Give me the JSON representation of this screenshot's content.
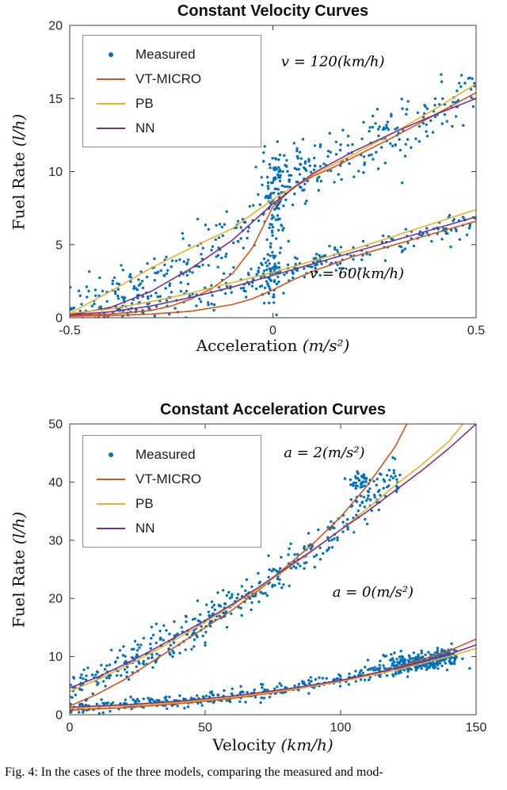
{
  "caption": "Fig. 4: In the cases of the three models, comparing the measured and mod-",
  "chart_data": [
    {
      "type": "scatter",
      "title": "Constant Velocity Curves",
      "xlabel": "Acceleration (m/s²)",
      "xlabel_text": "Acceleration ",
      "xlabel_math": "(m/s²)",
      "ylabel": "Fuel Rate (l/h)",
      "ylabel_text": "Fuel Rate ",
      "ylabel_math": "(l/h)",
      "xlim": [
        -0.5,
        0.5
      ],
      "ylim": [
        0,
        20
      ],
      "xticks": [
        -0.5,
        0,
        0.5
      ],
      "yticks": [
        0,
        5,
        10,
        15,
        20
      ],
      "grid": false,
      "legend_position": "top-left",
      "seed": 13,
      "legend": [
        {
          "label": "Measured",
          "type": "dot",
          "color": "#0072BD"
        },
        {
          "label": "VT-MICRO",
          "type": "line",
          "color": "#D95319"
        },
        {
          "label": "PB",
          "type": "line",
          "color": "#EDB120"
        },
        {
          "label": "NN",
          "type": "line",
          "color": "#7E2F8E"
        }
      ],
      "annotations": [
        {
          "text": "v = 120(km/h)",
          "x": 0.02,
          "y": 17.2
        },
        {
          "text": "v = 60(km/h)",
          "x": 0.09,
          "y": 2.7
        }
      ],
      "scatter_clusters": [
        {
          "name": "v=120 km/h measured",
          "x_range": [
            -0.5,
            0.5
          ],
          "noise_sd": 1.0,
          "n": 380,
          "trend": [
            [
              -0.5,
              0.3
            ],
            [
              -0.45,
              0.6
            ],
            [
              -0.4,
              1.1
            ],
            [
              -0.35,
              1.9
            ],
            [
              -0.3,
              2.7
            ],
            [
              -0.25,
              3.4
            ],
            [
              -0.2,
              4.2
            ],
            [
              -0.15,
              4.9
            ],
            [
              -0.1,
              5.4
            ],
            [
              -0.05,
              6.2
            ],
            [
              0,
              9.2
            ],
            [
              0.05,
              9.9
            ],
            [
              0.1,
              10.3
            ],
            [
              0.15,
              10.8
            ],
            [
              0.2,
              11.3
            ],
            [
              0.3,
              12.6
            ],
            [
              0.4,
              14.1
            ],
            [
              0.5,
              15.6
            ]
          ],
          "blobs": [
            {
              "x": 0.005,
              "y": 8.0,
              "sdx": 0.012,
              "sdy": 1.7,
              "n": 80
            },
            {
              "x": 0.05,
              "y": 9.6,
              "sdx": 0.03,
              "sdy": 0.8,
              "n": 40
            }
          ]
        },
        {
          "name": "v=60 km/h measured",
          "x_range": [
            -0.5,
            0.5
          ],
          "noise_sd": 0.5,
          "n": 280,
          "trend": [
            [
              -0.5,
              0.2
            ],
            [
              -0.4,
              0.35
            ],
            [
              -0.3,
              0.7
            ],
            [
              -0.2,
              1.3
            ],
            [
              -0.1,
              2.0
            ],
            [
              0,
              2.8
            ],
            [
              0.1,
              3.6
            ],
            [
              0.2,
              4.4
            ],
            [
              0.3,
              5.2
            ],
            [
              0.4,
              6.0
            ],
            [
              0.5,
              6.8
            ]
          ],
          "blobs": [
            {
              "x": 0.0,
              "y": 2.8,
              "sdx": 0.012,
              "sdy": 1.1,
              "n": 50
            }
          ]
        }
      ],
      "line_series": [
        {
          "name": "VT-MICRO",
          "cluster": "v=120",
          "color": "#D95319",
          "points": [
            [
              -0.5,
              0.15
            ],
            [
              -0.4,
              0.25
            ],
            [
              -0.3,
              0.5
            ],
            [
              -0.25,
              0.8
            ],
            [
              -0.2,
              1.3
            ],
            [
              -0.15,
              2.0
            ],
            [
              -0.1,
              3.0
            ],
            [
              -0.05,
              4.8
            ],
            [
              0,
              7.6
            ],
            [
              0.05,
              8.9
            ],
            [
              0.1,
              9.7
            ],
            [
              0.15,
              10.3
            ],
            [
              0.2,
              11.0
            ],
            [
              0.3,
              12.4
            ],
            [
              0.4,
              13.9
            ],
            [
              0.5,
              15.4
            ]
          ]
        },
        {
          "name": "PB",
          "cluster": "v=120",
          "color": "#EDB120",
          "points": [
            [
              -0.5,
              0.3
            ],
            [
              -0.4,
              1.8
            ],
            [
              -0.3,
              3.4
            ],
            [
              -0.2,
              4.8
            ],
            [
              -0.1,
              6.1
            ],
            [
              0,
              8.1
            ],
            [
              0.1,
              9.8
            ],
            [
              0.2,
              11.2
            ],
            [
              0.3,
              12.7
            ],
            [
              0.4,
              14.3
            ],
            [
              0.5,
              16.0
            ]
          ]
        },
        {
          "name": "NN",
          "cluster": "v=120",
          "color": "#7E2F8E",
          "points": [
            [
              -0.5,
              0.2
            ],
            [
              -0.4,
              0.7
            ],
            [
              -0.3,
              1.8
            ],
            [
              -0.2,
              3.4
            ],
            [
              -0.1,
              5.3
            ],
            [
              0,
              7.8
            ],
            [
              0.1,
              9.9
            ],
            [
              0.2,
              11.4
            ],
            [
              0.3,
              12.7
            ],
            [
              0.4,
              13.9
            ],
            [
              0.5,
              15.0
            ]
          ]
        },
        {
          "name": "VT-MICRO",
          "cluster": "v=60",
          "color": "#D95319",
          "points": [
            [
              -0.5,
              0.1
            ],
            [
              -0.4,
              0.15
            ],
            [
              -0.3,
              0.25
            ],
            [
              -0.2,
              0.45
            ],
            [
              -0.1,
              0.9
            ],
            [
              -0.05,
              1.3
            ],
            [
              0,
              1.9
            ],
            [
              0.05,
              2.6
            ],
            [
              0.1,
              3.2
            ],
            [
              0.2,
              4.2
            ],
            [
              0.3,
              5.0
            ],
            [
              0.4,
              5.8
            ],
            [
              0.5,
              6.6
            ]
          ]
        },
        {
          "name": "PB",
          "cluster": "v=60",
          "color": "#EDB120",
          "points": [
            [
              -0.5,
              0.3
            ],
            [
              -0.4,
              0.6
            ],
            [
              -0.3,
              1.1
            ],
            [
              -0.2,
              1.7
            ],
            [
              -0.1,
              2.4
            ],
            [
              0,
              3.1
            ],
            [
              0.1,
              3.9
            ],
            [
              0.2,
              4.7
            ],
            [
              0.3,
              5.6
            ],
            [
              0.4,
              6.5
            ],
            [
              0.5,
              7.4
            ]
          ]
        },
        {
          "name": "NN",
          "cluster": "v=60",
          "color": "#7E2F8E",
          "points": [
            [
              -0.5,
              0.2
            ],
            [
              -0.4,
              0.4
            ],
            [
              -0.3,
              0.8
            ],
            [
              -0.2,
              1.4
            ],
            [
              -0.1,
              2.1
            ],
            [
              0,
              2.9
            ],
            [
              0.1,
              3.7
            ],
            [
              0.2,
              4.5
            ],
            [
              0.3,
              5.3
            ],
            [
              0.4,
              6.1
            ],
            [
              0.5,
              6.9
            ]
          ]
        }
      ]
    },
    {
      "type": "scatter",
      "title": "Constant Acceleration Curves",
      "xlabel": "Velocity (km/h)",
      "xlabel_text": "Velocity ",
      "xlabel_math": "(km/h)",
      "ylabel": "Fuel Rate (l/h)",
      "ylabel_text": "Fuel Rate ",
      "ylabel_math": "(l/h)",
      "xlim": [
        0,
        150
      ],
      "ylim": [
        0,
        50
      ],
      "xticks": [
        0,
        50,
        100,
        150
      ],
      "yticks": [
        0,
        10,
        20,
        30,
        40,
        50
      ],
      "grid": false,
      "legend_position": "top-left",
      "seed": 29,
      "legend": [
        {
          "label": "Measured",
          "type": "dot",
          "color": "#0072BD"
        },
        {
          "label": "VT-MICRO",
          "type": "line",
          "color": "#D95319"
        },
        {
          "label": "PB",
          "type": "line",
          "color": "#EDB120"
        },
        {
          "label": "NN",
          "type": "line",
          "color": "#7E2F8E"
        }
      ],
      "annotations": [
        {
          "text": "a = 2(m/s²)",
          "x": 79,
          "y": 44.3
        },
        {
          "text": "a = 0(m/s²)",
          "x": 97,
          "y": 20.3
        }
      ],
      "scatter_clusters": [
        {
          "name": "a=2 m/s2 measured",
          "x_range": [
            0,
            122
          ],
          "noise_sd": 1.6,
          "n": 430,
          "trend": [
            [
              0,
              4.5
            ],
            [
              10,
              6.5
            ],
            [
              20,
              8.7
            ],
            [
              30,
              11
            ],
            [
              40,
              13.4
            ],
            [
              50,
              16
            ],
            [
              60,
              19
            ],
            [
              70,
              22
            ],
            [
              80,
              25.2
            ],
            [
              90,
              28.6
            ],
            [
              100,
              32.5
            ],
            [
              110,
              36.5
            ],
            [
              122,
              40.5
            ]
          ],
          "blobs": [
            {
              "x": 108,
              "y": 40.3,
              "sdx": 3,
              "sdy": 0.7,
              "n": 45
            }
          ]
        },
        {
          "name": "a=0 m/s2 measured",
          "x_range": [
            0,
            143
          ],
          "noise_sd": 0.55,
          "n": 400,
          "trend": [
            [
              0,
              1.2
            ],
            [
              20,
              1.7
            ],
            [
              40,
              2.3
            ],
            [
              60,
              3.2
            ],
            [
              80,
              4.4
            ],
            [
              100,
              6.0
            ],
            [
              110,
              6.9
            ],
            [
              120,
              7.9
            ],
            [
              130,
              8.9
            ],
            [
              140,
              9.6
            ]
          ],
          "blobs": [
            {
              "x": 126,
              "y": 9.0,
              "sdx": 7,
              "sdy": 0.9,
              "n": 160
            },
            {
              "x": 137,
              "y": 10.3,
              "sdx": 3,
              "sdy": 0.8,
              "n": 60
            }
          ]
        }
      ],
      "line_series": [
        {
          "name": "VT-MICRO",
          "cluster": "a=2",
          "color": "#D95319",
          "points": [
            [
              0,
              1.5
            ],
            [
              10,
              3.5
            ],
            [
              20,
              6
            ],
            [
              30,
              9
            ],
            [
              40,
              12
            ],
            [
              50,
              15
            ],
            [
              60,
              18
            ],
            [
              70,
              21.5
            ],
            [
              80,
              25.5
            ],
            [
              90,
              29.5
            ],
            [
              100,
              34
            ],
            [
              110,
              39.5
            ],
            [
              120,
              46
            ],
            [
              125,
              50.5
            ]
          ]
        },
        {
          "name": "PB",
          "cluster": "a=2",
          "color": "#EDB120",
          "points": [
            [
              0,
              4
            ],
            [
              10,
              6
            ],
            [
              20,
              8.2
            ],
            [
              30,
              10.6
            ],
            [
              40,
              13.2
            ],
            [
              50,
              15.9
            ],
            [
              60,
              18.8
            ],
            [
              70,
              21.8
            ],
            [
              80,
              25
            ],
            [
              90,
              28.3
            ],
            [
              100,
              31.8
            ],
            [
              110,
              35.5
            ],
            [
              120,
              39.4
            ],
            [
              130,
              43
            ],
            [
              140,
              47
            ],
            [
              146,
              50.5
            ]
          ]
        },
        {
          "name": "NN",
          "cluster": "a=2",
          "color": "#7E2F8E",
          "points": [
            [
              0,
              4.6
            ],
            [
              10,
              6.4
            ],
            [
              20,
              8.6
            ],
            [
              30,
              11
            ],
            [
              40,
              13.6
            ],
            [
              50,
              16.2
            ],
            [
              60,
              19
            ],
            [
              70,
              22
            ],
            [
              80,
              25.2
            ],
            [
              90,
              28.4
            ],
            [
              100,
              31.8
            ],
            [
              110,
              35
            ],
            [
              120,
              38.5
            ],
            [
              130,
              42
            ],
            [
              140,
              45.8
            ],
            [
              150,
              50
            ]
          ]
        },
        {
          "name": "VT-MICRO",
          "cluster": "a=0",
          "color": "#D95319",
          "points": [
            [
              0,
              0.8
            ],
            [
              20,
              1.2
            ],
            [
              40,
              1.9
            ],
            [
              60,
              2.8
            ],
            [
              80,
              4.1
            ],
            [
              100,
              5.8
            ],
            [
              120,
              8.0
            ],
            [
              140,
              11.0
            ],
            [
              150,
              13.0
            ]
          ]
        },
        {
          "name": "PB",
          "cluster": "a=0",
          "color": "#EDB120",
          "points": [
            [
              0,
              1.1
            ],
            [
              20,
              1.5
            ],
            [
              40,
              2.1
            ],
            [
              60,
              3.0
            ],
            [
              80,
              4.2
            ],
            [
              100,
              5.7
            ],
            [
              120,
              7.6
            ],
            [
              140,
              10.0
            ],
            [
              150,
              11.4
            ]
          ]
        },
        {
          "name": "NN",
          "cluster": "a=0",
          "color": "#7E2F8E",
          "points": [
            [
              0,
              1.3
            ],
            [
              20,
              1.7
            ],
            [
              40,
              2.3
            ],
            [
              60,
              3.2
            ],
            [
              80,
              4.4
            ],
            [
              100,
              5.9
            ],
            [
              120,
              7.9
            ],
            [
              140,
              10.4
            ],
            [
              150,
              12.0
            ]
          ]
        }
      ]
    }
  ]
}
